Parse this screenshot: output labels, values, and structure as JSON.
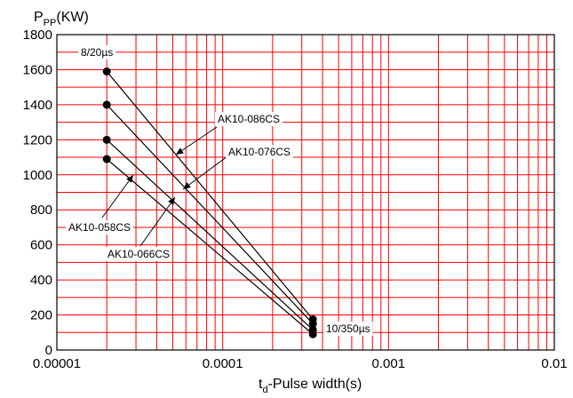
{
  "chart_data": {
    "type": "line",
    "x_scale": "log",
    "xlim": [
      1e-05,
      0.01
    ],
    "ylim": [
      0,
      1800
    ],
    "grid": true,
    "colors": {
      "grid": "#ff0000",
      "axis": "#000000",
      "series": "#000000"
    },
    "y_title": {
      "main": "P",
      "sub": "PP",
      "unit": "(KW)"
    },
    "x_title": {
      "main": "t",
      "sub": "d",
      "rest": "-Pulse width(s)"
    },
    "x_ticks": [
      {
        "value": 1e-05,
        "label": "0.00001"
      },
      {
        "value": 0.0001,
        "label": "0.0001"
      },
      {
        "value": 0.001,
        "label": "0.001"
      },
      {
        "value": 0.01,
        "label": "0.01"
      }
    ],
    "y_ticks": [
      {
        "value": 0,
        "label": "0"
      },
      {
        "value": 200,
        "label": "200"
      },
      {
        "value": 400,
        "label": "400"
      },
      {
        "value": 600,
        "label": "600"
      },
      {
        "value": 800,
        "label": "800"
      },
      {
        "value": 1000,
        "label": "1000"
      },
      {
        "value": 1200,
        "label": "1200"
      },
      {
        "value": 1400,
        "label": "1400"
      },
      {
        "value": 1600,
        "label": "1600"
      },
      {
        "value": 1800,
        "label": "1800"
      }
    ],
    "series": [
      {
        "name": "AK10-086CS",
        "x": [
          2e-05,
          0.00035
        ],
        "y": [
          1590,
          175
        ]
      },
      {
        "name": "AK10-076CS",
        "x": [
          2e-05,
          0.00035
        ],
        "y": [
          1400,
          150
        ]
      },
      {
        "name": "AK10-066CS",
        "x": [
          2e-05,
          0.00035
        ],
        "y": [
          1200,
          115
        ]
      },
      {
        "name": "AK10-058CS",
        "x": [
          2e-05,
          0.00035
        ],
        "y": [
          1090,
          90
        ]
      }
    ],
    "annotations": [
      {
        "text": "8/20µs"
      },
      {
        "text": "10/350µs"
      }
    ]
  }
}
